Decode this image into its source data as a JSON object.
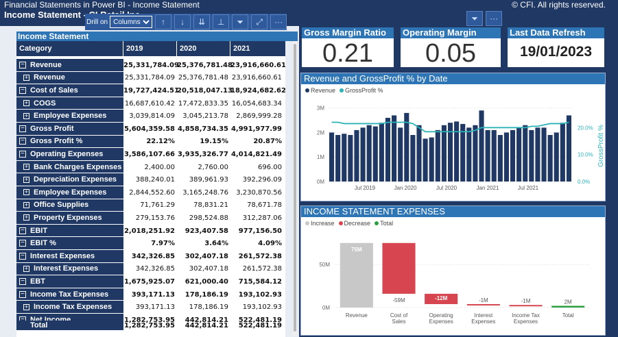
{
  "header": {
    "title": "Financial Statements in Power BI - Income Statement",
    "subtitle": "Income Statement - CI Retail Inc",
    "copyright": "© CFI. All rights reserved."
  },
  "drill": {
    "label": "Drill on",
    "selected": "Columns"
  },
  "statement": {
    "title": "Income Statement",
    "columns": [
      "Category",
      "2019",
      "2020",
      "2021"
    ],
    "rows": [
      {
        "label": "Revenue",
        "lvl": 0,
        "v": [
          "25,331,784.09",
          "25,376,781.48",
          "23,916,660.61"
        ],
        "b": true,
        "sign": "−"
      },
      {
        "label": "Revenue",
        "lvl": 1,
        "v": [
          "25,331,784.09",
          "25,376,781.48",
          "23,916,660.61"
        ],
        "b": false,
        "sign": "+"
      },
      {
        "label": "Cost of Sales",
        "lvl": 0,
        "v": [
          "19,727,424.51",
          "20,518,047.13",
          "18,924,682.62"
        ],
        "b": true,
        "sign": "−"
      },
      {
        "label": "COGS",
        "lvl": 1,
        "v": [
          "16,687,610.42",
          "17,472,833.35",
          "16,054,683.34"
        ],
        "b": false,
        "sign": "+"
      },
      {
        "label": "Employee Expenses",
        "lvl": 1,
        "v": [
          "3,039,814.09",
          "3,045,213.78",
          "2,869,999.28"
        ],
        "b": false,
        "sign": "+"
      },
      {
        "label": "Gross Profit",
        "lvl": 0,
        "v": [
          "5,604,359.58",
          "4,858,734.35",
          "4,991,977.99"
        ],
        "b": true,
        "sign": "−"
      },
      {
        "label": "Gross Profit %",
        "lvl": 0,
        "v": [
          "22.12%",
          "19.15%",
          "20.87%"
        ],
        "b": true,
        "sign": "−"
      },
      {
        "label": "Operating Expenses",
        "lvl": 0,
        "v": [
          "3,586,107.66",
          "3,935,326.77",
          "4,014,821.49"
        ],
        "b": true,
        "sign": "−"
      },
      {
        "label": "Bank Charges Expenses",
        "lvl": 1,
        "v": [
          "2,400.00",
          "2,760.00",
          "696.00"
        ],
        "b": false,
        "sign": "+"
      },
      {
        "label": "Depreciation Expenses",
        "lvl": 1,
        "v": [
          "388,240.01",
          "389,961.93",
          "392,296.09"
        ],
        "b": false,
        "sign": "+"
      },
      {
        "label": "Employee Expenses",
        "lvl": 1,
        "v": [
          "2,844,552.60",
          "3,165,248.76",
          "3,230,870.56"
        ],
        "b": false,
        "sign": "+"
      },
      {
        "label": "Office Supplies",
        "lvl": 1,
        "v": [
          "71,761.29",
          "78,831.21",
          "78,671.78"
        ],
        "b": false,
        "sign": "+"
      },
      {
        "label": "Property Expenses",
        "lvl": 1,
        "v": [
          "279,153.76",
          "298,524.88",
          "312,287.06"
        ],
        "b": false,
        "sign": "+"
      },
      {
        "label": "EBIT",
        "lvl": 0,
        "v": [
          "2,018,251.92",
          "923,407.58",
          "977,156.50"
        ],
        "b": true,
        "sign": "−"
      },
      {
        "label": "EBIT %",
        "lvl": 0,
        "v": [
          "7.97%",
          "3.64%",
          "4.09%"
        ],
        "b": true,
        "sign": "−"
      },
      {
        "label": "Interest Expenses",
        "lvl": 0,
        "v": [
          "342,326.85",
          "302,407.18",
          "261,572.38"
        ],
        "b": true,
        "sign": "−"
      },
      {
        "label": "Interest Expenses",
        "lvl": 1,
        "v": [
          "342,326.85",
          "302,407.18",
          "261,572.38"
        ],
        "b": false,
        "sign": "+"
      },
      {
        "label": "EBT",
        "lvl": 0,
        "v": [
          "1,675,925.07",
          "621,000.40",
          "715,584.12"
        ],
        "b": true,
        "sign": "−"
      },
      {
        "label": "Income Tax Expenses",
        "lvl": 0,
        "v": [
          "393,171.13",
          "178,186.19",
          "193,102.93"
        ],
        "b": true,
        "sign": "−"
      },
      {
        "label": "Income Tax Expenses",
        "lvl": 1,
        "v": [
          "393,171.13",
          "178,186.19",
          "193,102.93"
        ],
        "b": false,
        "sign": "+"
      },
      {
        "label": "Net Income",
        "lvl": 0,
        "v": [
          "1,282,753.95",
          "442,814.21",
          "522,481.19"
        ],
        "b": true,
        "sign": "−"
      }
    ],
    "total": {
      "label": "Total",
      "v": [
        "1,282,753.95",
        "442,814.21",
        "522,481.19"
      ]
    }
  },
  "kpis": [
    {
      "title": "Gross Margin Ratio",
      "value": "0.21"
    },
    {
      "title": "Operating Margin Ratio",
      "value": "0.05"
    },
    {
      "title": "Last Data Refresh",
      "value": "19/01/2023"
    }
  ],
  "chart_data": [
    {
      "type": "bar",
      "title": "Revenue and GrossProfit % by Date",
      "legend": [
        "Revenue",
        "GrossProfit %"
      ],
      "colors": {
        "Revenue": "#1f3864",
        "GrossProfit %": "#2cb3b8"
      },
      "y_ticks": [
        "0M",
        "1M",
        "2M",
        "3M"
      ],
      "y2_ticks": [
        "0.0%",
        "10.0%",
        "20.0%"
      ],
      "y2_label": "GrossProfit %",
      "x_ticks": [
        "Jul 2019",
        "Jan 2020",
        "Jul 2020",
        "Jan 2021",
        "Jul 2021"
      ],
      "ylim": [
        0,
        3.3
      ],
      "y2lim": [
        0,
        0.3
      ],
      "revenue_m": [
        2.0,
        1.9,
        1.95,
        1.9,
        2.1,
        2.2,
        2.3,
        2.25,
        2.4,
        2.6,
        2.7,
        2.2,
        2.8,
        1.9,
        2.3,
        1.75,
        1.8,
        2.1,
        2.3,
        2.4,
        2.45,
        2.35,
        2.2,
        2.3,
        2.9,
        2.1,
        2.1,
        1.9,
        2.0,
        2.1,
        2.2,
        2.3,
        2.1,
        2.2,
        2.2,
        1.9,
        2.0,
        2.4,
        2.7
      ],
      "gp_pct": [
        0.22,
        0.22,
        0.215,
        0.215,
        0.215,
        0.215,
        0.215,
        0.215,
        0.215,
        0.22,
        0.22,
        0.22,
        0.22,
        0.215,
        0.2,
        0.185,
        0.185,
        0.185,
        0.185,
        0.185,
        0.185,
        0.185,
        0.185,
        0.19,
        0.2,
        0.2,
        0.2,
        0.2,
        0.2,
        0.2,
        0.2,
        0.2,
        0.205,
        0.205,
        0.21,
        0.215,
        0.215,
        0.215,
        0.22
      ]
    },
    {
      "type": "bar",
      "subtype": "waterfall",
      "title": "INCOME STATEMENT EXPENSES",
      "legend": [
        "Increase",
        "Decrease",
        "Total"
      ],
      "colors": {
        "Increase": "#c8c8c8",
        "Decrease": "#d64550",
        "Total": "#2ea043"
      },
      "y_ticks": [
        "0M",
        "50M"
      ],
      "categories": [
        "Revenue",
        "Cost of Sales",
        "Operating Expenses",
        "Interest Expenses",
        "Income Tax Expenses",
        "Total"
      ],
      "labels": [
        "75M",
        "-59M",
        "-12M",
        "-1M",
        "-1M",
        "2M"
      ],
      "values_m": [
        75,
        -59,
        -12,
        -1,
        -1,
        2
      ]
    }
  ]
}
